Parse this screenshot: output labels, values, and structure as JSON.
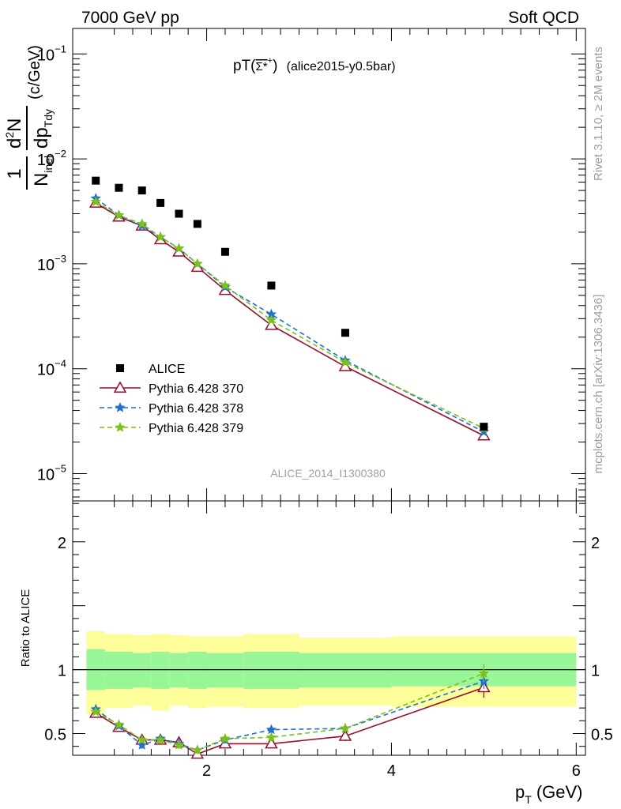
{
  "header": {
    "left_label": "7000 GeV pp",
    "right_label": "Soft QCD"
  },
  "side_labels": {
    "rivet": "Rivet 3.1.10, ≥ 2M events",
    "mcplots": "mcplots.cern.ch [arXiv:1306.3436]"
  },
  "chart_data": {
    "type": "line",
    "title_main": "pT(",
    "title_particle": "Σ*",
    "title_sup": "+",
    "title_close": ")",
    "title_tag": "(alice2015-y0.5bar)",
    "watermark": "ALICE_2014_I1300380",
    "ylabel": {
      "num_1": "1",
      "den_1_main": "N",
      "den_1_sub": "inel",
      "num_2_main": "d",
      "num_2_sup": "2",
      "num_2_tail": "N",
      "den_2_main": "dp",
      "den_2_sub": "Tdy",
      "unit": "(c/GeV)"
    },
    "ratio_ylabel": "Ratio to ALICE",
    "xlabel": {
      "main": "p",
      "sub": "T",
      "unit": "(GeV)"
    },
    "xlim": [
      0.55,
      6.1
    ],
    "ylim_log": [
      5.5e-06,
      0.175
    ],
    "ratio_ylim": [
      0.33,
      2.32
    ],
    "log_y": true,
    "x_ticks": [
      {
        "value": 2,
        "label": "2"
      },
      {
        "value": 4,
        "label": "4"
      },
      {
        "value": 6,
        "label": "6"
      }
    ],
    "y_ticks": [
      {
        "exp": -1,
        "base": "10",
        "sup": "−1"
      },
      {
        "exp": -2,
        "base": "10",
        "sup": "−2"
      },
      {
        "exp": -3,
        "base": "10",
        "sup": "−3"
      },
      {
        "exp": -4,
        "base": "10",
        "sup": "−4"
      },
      {
        "exp": -5,
        "base": "10",
        "sup": "−5"
      }
    ],
    "ratio_ticks": [
      {
        "value": 0.5,
        "label": "0.5"
      },
      {
        "value": 1,
        "label": "1"
      },
      {
        "value": 2,
        "label": "2"
      }
    ],
    "legend_position": "bottom-left",
    "data": {
      "name": "ALICE",
      "color": "#000000",
      "x": [
        0.8,
        1.05,
        1.3,
        1.5,
        1.7,
        1.9,
        2.2,
        2.7,
        3.5,
        5.0
      ],
      "y": [
        0.0062,
        0.0053,
        0.005,
        0.0038,
        0.003,
        0.0024,
        0.0013,
        0.00062,
        0.00022,
        2.8e-05
      ]
    },
    "bins": [
      0.7,
      0.9,
      1.2,
      1.4,
      1.6,
      1.8,
      2.0,
      2.4,
      3.0,
      4.0,
      6.0
    ],
    "band_inner": [
      [
        0.84,
        1.16
      ],
      [
        0.85,
        1.14
      ],
      [
        0.86,
        1.13
      ],
      [
        0.85,
        1.14
      ],
      [
        0.86,
        1.13
      ],
      [
        0.85,
        1.14
      ],
      [
        0.86,
        1.13
      ],
      [
        0.85,
        1.14
      ],
      [
        0.86,
        1.13
      ],
      [
        0.87,
        1.13
      ]
    ],
    "band_outer": [
      [
        0.65,
        1.3
      ],
      [
        0.7,
        1.28
      ],
      [
        0.72,
        1.27
      ],
      [
        0.68,
        1.28
      ],
      [
        0.72,
        1.27
      ],
      [
        0.7,
        1.26
      ],
      [
        0.71,
        1.26
      ],
      [
        0.7,
        1.28
      ],
      [
        0.72,
        1.25
      ],
      [
        0.71,
        1.26
      ]
    ],
    "series": [
      {
        "name": "Pythia 6.428 370",
        "color": "#9a0b2a",
        "dash": "",
        "marker": "triangle",
        "x": [
          0.8,
          1.05,
          1.3,
          1.5,
          1.7,
          1.9,
          2.2,
          2.7,
          3.5,
          5.0
        ],
        "y": [
          0.0038,
          0.0028,
          0.0023,
          0.0017,
          0.0013,
          0.00093,
          0.00056,
          0.00026,
          0.000105,
          2.3e-05
        ],
        "ratio": [
          0.66,
          0.55,
          0.45,
          0.45,
          0.43,
          0.34,
          0.42,
          0.42,
          0.48,
          0.86
        ],
        "ratio_err": [
          0.01,
          0.02,
          0.03,
          0.02,
          0.03,
          0.03,
          0.02,
          0.03,
          0.04,
          0.08
        ]
      },
      {
        "name": "Pythia 6.428 378",
        "color": "#1f6fd6",
        "dash": "6,4",
        "marker": "star",
        "x": [
          0.8,
          1.05,
          1.3,
          1.5,
          1.7,
          1.9,
          2.2,
          2.7,
          3.5,
          5.0
        ],
        "y": [
          0.0042,
          0.0029,
          0.0023,
          0.0018,
          0.0014,
          0.001,
          0.0006,
          0.00033,
          0.00012,
          2.5e-05
        ],
        "ratio": [
          0.69,
          0.56,
          0.41,
          0.46,
          0.42,
          0.37,
          0.45,
          0.53,
          0.54,
          0.91
        ],
        "ratio_err": [
          0.02,
          0.02,
          0.03,
          0.03,
          0.03,
          0.03,
          0.03,
          0.03,
          0.04,
          0.06
        ]
      },
      {
        "name": "Pythia 6.428 379",
        "color": "#7ac216",
        "dash": "6,4",
        "marker": "star",
        "x": [
          0.8,
          1.05,
          1.3,
          1.5,
          1.7,
          1.9,
          2.2,
          2.7,
          3.5,
          5.0
        ],
        "y": [
          0.0039,
          0.0029,
          0.0024,
          0.0018,
          0.0014,
          0.001,
          0.00062,
          0.00029,
          0.000115,
          2.7e-05
        ],
        "ratio": [
          0.67,
          0.57,
          0.45,
          0.45,
          0.41,
          0.37,
          0.46,
          0.47,
          0.54,
          0.97
        ],
        "ratio_err": [
          0.01,
          0.02,
          0.02,
          0.03,
          0.03,
          0.03,
          0.02,
          0.03,
          0.04,
          0.07
        ]
      }
    ]
  }
}
